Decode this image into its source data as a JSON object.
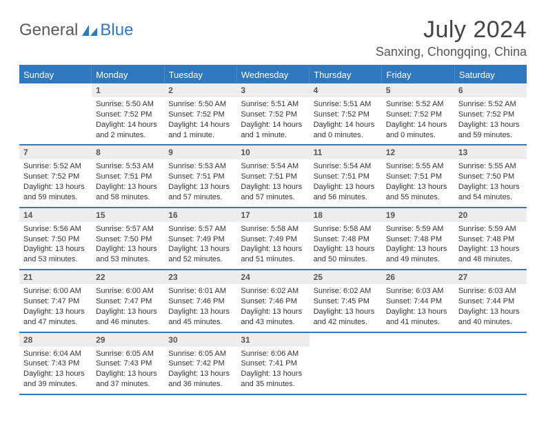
{
  "brand": {
    "text1": "General",
    "text2": "Blue"
  },
  "title": "July 2024",
  "location": "Sanxing, Chongqing, China",
  "colors": {
    "accent": "#2f78bd",
    "header_bg": "#2f78bd",
    "header_text": "#ffffff",
    "datenum_bg": "#ededed",
    "body_text": "#333333",
    "page_bg": "#ffffff"
  },
  "typography": {
    "title_fontsize": 34,
    "location_fontsize": 18,
    "dayhead_fontsize": 13,
    "datenum_fontsize": 12,
    "body_fontsize": 11
  },
  "layout": {
    "columns": 7,
    "rows": 5,
    "first_weekday_offset": 1
  },
  "weekdays": [
    "Sunday",
    "Monday",
    "Tuesday",
    "Wednesday",
    "Thursday",
    "Friday",
    "Saturday"
  ],
  "days": [
    {
      "n": 1,
      "sunrise": "5:50 AM",
      "sunset": "7:52 PM",
      "daylight": "14 hours and 2 minutes."
    },
    {
      "n": 2,
      "sunrise": "5:50 AM",
      "sunset": "7:52 PM",
      "daylight": "14 hours and 1 minute."
    },
    {
      "n": 3,
      "sunrise": "5:51 AM",
      "sunset": "7:52 PM",
      "daylight": "14 hours and 1 minute."
    },
    {
      "n": 4,
      "sunrise": "5:51 AM",
      "sunset": "7:52 PM",
      "daylight": "14 hours and 0 minutes."
    },
    {
      "n": 5,
      "sunrise": "5:52 AM",
      "sunset": "7:52 PM",
      "daylight": "14 hours and 0 minutes."
    },
    {
      "n": 6,
      "sunrise": "5:52 AM",
      "sunset": "7:52 PM",
      "daylight": "13 hours and 59 minutes."
    },
    {
      "n": 7,
      "sunrise": "5:52 AM",
      "sunset": "7:52 PM",
      "daylight": "13 hours and 59 minutes."
    },
    {
      "n": 8,
      "sunrise": "5:53 AM",
      "sunset": "7:51 PM",
      "daylight": "13 hours and 58 minutes."
    },
    {
      "n": 9,
      "sunrise": "5:53 AM",
      "sunset": "7:51 PM",
      "daylight": "13 hours and 57 minutes."
    },
    {
      "n": 10,
      "sunrise": "5:54 AM",
      "sunset": "7:51 PM",
      "daylight": "13 hours and 57 minutes."
    },
    {
      "n": 11,
      "sunrise": "5:54 AM",
      "sunset": "7:51 PM",
      "daylight": "13 hours and 56 minutes."
    },
    {
      "n": 12,
      "sunrise": "5:55 AM",
      "sunset": "7:51 PM",
      "daylight": "13 hours and 55 minutes."
    },
    {
      "n": 13,
      "sunrise": "5:55 AM",
      "sunset": "7:50 PM",
      "daylight": "13 hours and 54 minutes."
    },
    {
      "n": 14,
      "sunrise": "5:56 AM",
      "sunset": "7:50 PM",
      "daylight": "13 hours and 53 minutes."
    },
    {
      "n": 15,
      "sunrise": "5:57 AM",
      "sunset": "7:50 PM",
      "daylight": "13 hours and 53 minutes."
    },
    {
      "n": 16,
      "sunrise": "5:57 AM",
      "sunset": "7:49 PM",
      "daylight": "13 hours and 52 minutes."
    },
    {
      "n": 17,
      "sunrise": "5:58 AM",
      "sunset": "7:49 PM",
      "daylight": "13 hours and 51 minutes."
    },
    {
      "n": 18,
      "sunrise": "5:58 AM",
      "sunset": "7:48 PM",
      "daylight": "13 hours and 50 minutes."
    },
    {
      "n": 19,
      "sunrise": "5:59 AM",
      "sunset": "7:48 PM",
      "daylight": "13 hours and 49 minutes."
    },
    {
      "n": 20,
      "sunrise": "5:59 AM",
      "sunset": "7:48 PM",
      "daylight": "13 hours and 48 minutes."
    },
    {
      "n": 21,
      "sunrise": "6:00 AM",
      "sunset": "7:47 PM",
      "daylight": "13 hours and 47 minutes."
    },
    {
      "n": 22,
      "sunrise": "6:00 AM",
      "sunset": "7:47 PM",
      "daylight": "13 hours and 46 minutes."
    },
    {
      "n": 23,
      "sunrise": "6:01 AM",
      "sunset": "7:46 PM",
      "daylight": "13 hours and 45 minutes."
    },
    {
      "n": 24,
      "sunrise": "6:02 AM",
      "sunset": "7:46 PM",
      "daylight": "13 hours and 43 minutes."
    },
    {
      "n": 25,
      "sunrise": "6:02 AM",
      "sunset": "7:45 PM",
      "daylight": "13 hours and 42 minutes."
    },
    {
      "n": 26,
      "sunrise": "6:03 AM",
      "sunset": "7:44 PM",
      "daylight": "13 hours and 41 minutes."
    },
    {
      "n": 27,
      "sunrise": "6:03 AM",
      "sunset": "7:44 PM",
      "daylight": "13 hours and 40 minutes."
    },
    {
      "n": 28,
      "sunrise": "6:04 AM",
      "sunset": "7:43 PM",
      "daylight": "13 hours and 39 minutes."
    },
    {
      "n": 29,
      "sunrise": "6:05 AM",
      "sunset": "7:43 PM",
      "daylight": "13 hours and 37 minutes."
    },
    {
      "n": 30,
      "sunrise": "6:05 AM",
      "sunset": "7:42 PM",
      "daylight": "13 hours and 36 minutes."
    },
    {
      "n": 31,
      "sunrise": "6:06 AM",
      "sunset": "7:41 PM",
      "daylight": "13 hours and 35 minutes."
    }
  ],
  "labels": {
    "sunrise": "Sunrise:",
    "sunset": "Sunset:",
    "daylight": "Daylight:"
  }
}
